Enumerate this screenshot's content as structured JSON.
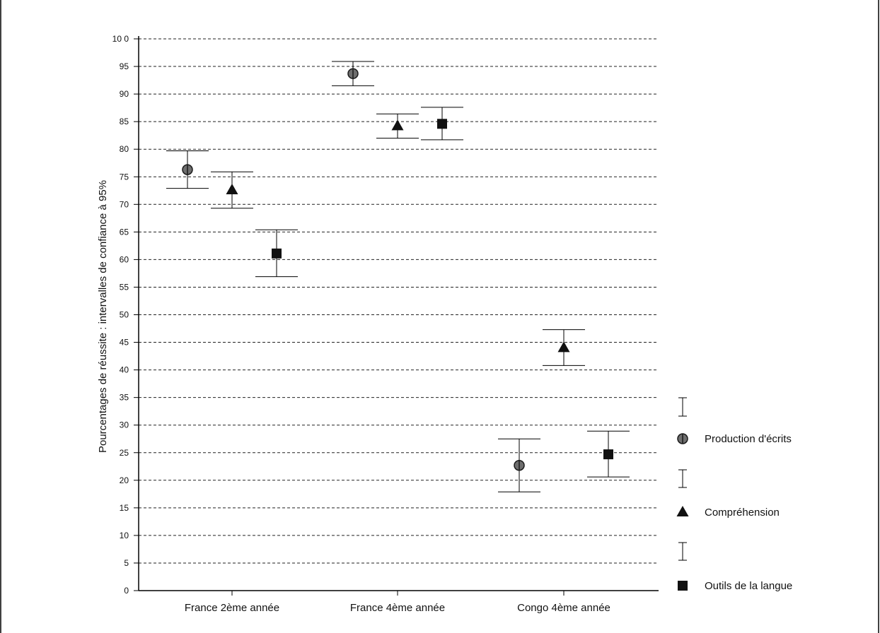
{
  "chart_data": {
    "type": "scatter",
    "title": "",
    "ylabel": "Pourcentages de réussite : intervalles de confiance à 95%",
    "xlabel": "",
    "ylim": [
      0,
      100
    ],
    "y_ticks": [
      "0",
      "5",
      "10",
      "15",
      "20",
      "25",
      "30",
      "35",
      "40",
      "45",
      "50",
      "55",
      "60",
      "65",
      "70",
      "75",
      "80",
      "85",
      "90",
      "95",
      "10 0"
    ],
    "grid": "horizontal dashed",
    "legend_position": "right",
    "categories": [
      "France 2ème année",
      "France 4ème année",
      "Congo 4ème année"
    ],
    "series": [
      {
        "name": "Production d'écrits",
        "marker": "circle",
        "values": [
          76.3,
          93.7,
          22.7
        ],
        "ci_low": [
          72.9,
          91.5,
          17.9
        ],
        "ci_high": [
          79.7,
          95.9,
          27.5
        ]
      },
      {
        "name": "Compréhension",
        "marker": "triangle",
        "values": [
          72.6,
          84.2,
          44.0
        ],
        "ci_low": [
          69.3,
          82.0,
          40.8
        ],
        "ci_high": [
          75.9,
          86.4,
          47.3
        ]
      },
      {
        "name": "Outils de la langue",
        "marker": "square",
        "values": [
          61.1,
          84.6,
          24.7
        ],
        "ci_low": [
          56.9,
          81.7,
          20.6
        ],
        "ci_high": [
          65.4,
          87.6,
          28.9
        ]
      }
    ]
  }
}
